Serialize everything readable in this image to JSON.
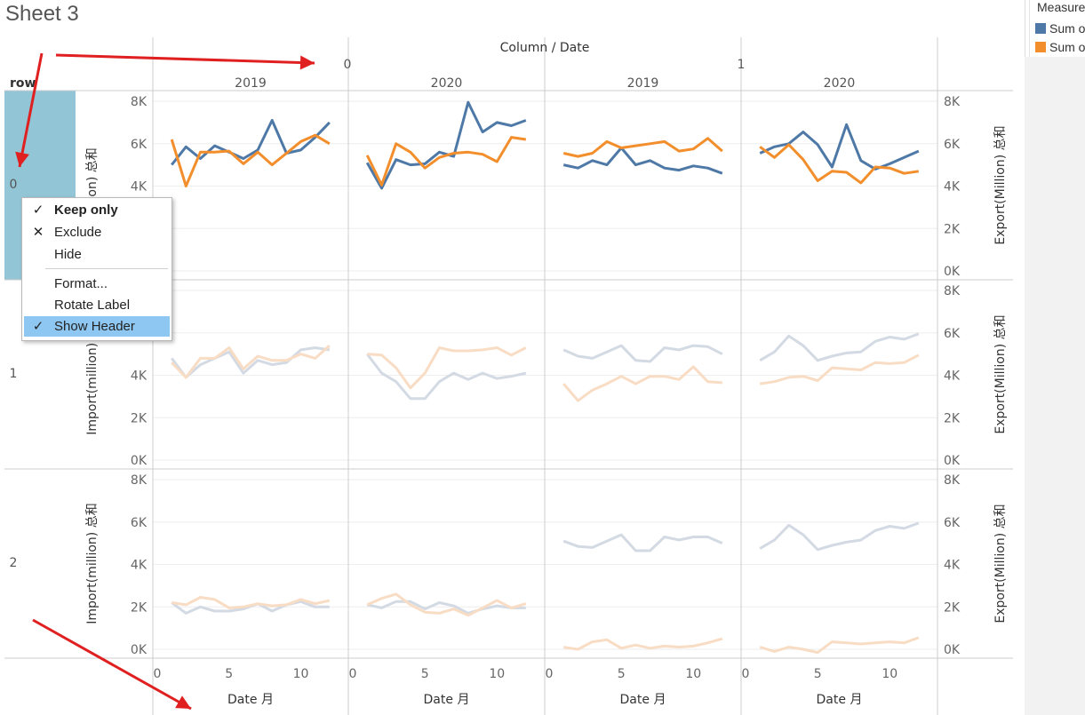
{
  "sheet_title": "Sheet 3",
  "colors": {
    "import": "#4e79a7",
    "export": "#f28e2b",
    "import_faded": "#d3dae3",
    "export_faded": "#f8dcc4",
    "selected_header": "#92c5d6",
    "menu_selected": "#8ec8f2",
    "annotation_arrow": "#e02020",
    "grid": "#eeeeee",
    "divider": "#cccccc"
  },
  "legend": {
    "title": "Measure",
    "items": [
      {
        "label": "Sum o",
        "color": "#4e79a7"
      },
      {
        "label": "Sum o",
        "color": "#f28e2b"
      }
    ]
  },
  "context_menu": {
    "items": [
      {
        "label": "Keep only",
        "icon": "check-icon",
        "glyph": "✓",
        "bold": true,
        "selected": false,
        "separator_before": false
      },
      {
        "label": "Exclude",
        "icon": "x-icon",
        "glyph": "✕",
        "bold": false,
        "selected": false,
        "separator_before": false
      },
      {
        "label": "Hide",
        "icon": "",
        "glyph": "",
        "bold": false,
        "selected": false,
        "separator_before": false
      },
      {
        "label": "Format...",
        "icon": "",
        "glyph": "",
        "bold": false,
        "selected": false,
        "separator_before": true
      },
      {
        "label": "Rotate Label",
        "icon": "",
        "glyph": "",
        "bold": false,
        "selected": false,
        "separator_before": false
      },
      {
        "label": "Show Header",
        "icon": "check-icon",
        "glyph": "✓",
        "bold": false,
        "selected": true,
        "separator_before": false
      }
    ]
  },
  "chart_data": {
    "type": "line",
    "title": "Column / Date",
    "row_header_label": "row",
    "rows": [
      "0",
      "1",
      "2"
    ],
    "columns": [
      {
        "column": "0",
        "year": "2019"
      },
      {
        "column": "0",
        "year": "2020"
      },
      {
        "column": "1",
        "year": "2019"
      },
      {
        "column": "1",
        "year": "2020"
      }
    ],
    "column_group_labels": [
      "0",
      "1"
    ],
    "x": [
      1,
      2,
      3,
      4,
      5,
      6,
      7,
      8,
      9,
      10,
      11,
      12
    ],
    "xlabel": "Date 月",
    "xticks": [
      0,
      5,
      10
    ],
    "xtick_labels": [
      "0",
      "5",
      "10"
    ],
    "xlim": [
      0,
      13
    ],
    "ylabel_left": "Import(million) 总和",
    "ylabel_left_row0": "million) 总和",
    "ylabel_right": "Export(Million) 总和",
    "ylim": [
      0,
      8000
    ],
    "yticks": [
      0,
      2000,
      4000,
      6000,
      8000
    ],
    "ytick_labels": [
      "0K",
      "2K",
      "4K",
      "6K",
      "8K"
    ],
    "highlighted_row": "0",
    "series_names": [
      "Sum of Import(million)",
      "Sum of Export(Million)"
    ],
    "cells": [
      [
        {
          "import": [
            5000,
            5850,
            5300,
            5900,
            5600,
            5300,
            5700,
            7100,
            5550,
            5700,
            6300,
            7000
          ],
          "export": [
            6200,
            4000,
            5600,
            5600,
            5650,
            5050,
            5600,
            5000,
            5550,
            6100,
            6400,
            6000
          ]
        },
        {
          "import": [
            5100,
            3900,
            5250,
            5000,
            5050,
            5600,
            5400,
            7950,
            6550,
            7000,
            6850,
            7100
          ],
          "export": [
            5450,
            4050,
            6000,
            5600,
            4850,
            5350,
            5550,
            5600,
            5500,
            5150,
            6300,
            6200
          ]
        },
        {
          "import": [
            5000,
            4850,
            5200,
            5000,
            5800,
            5000,
            5200,
            4850,
            4750,
            4950,
            4850,
            4600
          ],
          "export": [
            5550,
            5400,
            5550,
            6100,
            5800,
            5900,
            6000,
            6100,
            5650,
            5750,
            6250,
            5650
          ]
        },
        {
          "import": [
            5550,
            5850,
            6000,
            6550,
            5950,
            4900,
            6900,
            5200,
            4800,
            5050,
            5350,
            5650
          ],
          "export": [
            5850,
            5350,
            5950,
            5250,
            4250,
            4700,
            4650,
            4150,
            4900,
            4850,
            4600,
            4700
          ]
        }
      ],
      [
        {
          "import": [
            4800,
            3900,
            4500,
            4800,
            5100,
            4100,
            4700,
            4500,
            4600,
            5200,
            5300,
            5200
          ],
          "export": [
            4600,
            3900,
            4800,
            4800,
            5300,
            4300,
            4900,
            4700,
            4700,
            5000,
            4800,
            5400
          ]
        },
        {
          "import": [
            5000,
            4100,
            3700,
            2900,
            2900,
            3700,
            4100,
            3800,
            4100,
            3850,
            3950,
            4100
          ],
          "export": [
            5000,
            4950,
            4350,
            3400,
            4100,
            5300,
            5150,
            5150,
            5200,
            5300,
            4950,
            5300
          ]
        },
        {
          "import": [
            5200,
            4900,
            4800,
            5100,
            5400,
            4700,
            4650,
            5300,
            5200,
            5400,
            5350,
            5000
          ],
          "export": [
            3600,
            2800,
            3300,
            3600,
            3950,
            3600,
            3950,
            3950,
            3800,
            4400,
            3700,
            3650
          ]
        },
        {
          "import": [
            4700,
            5100,
            5850,
            5400,
            4700,
            4900,
            5050,
            5100,
            5600,
            5800,
            5700,
            5950
          ],
          "export": [
            3600,
            3700,
            3900,
            3950,
            3750,
            4350,
            4300,
            4250,
            4600,
            4550,
            4600,
            4950
          ]
        }
      ],
      [
        {
          "import": [
            2200,
            1700,
            2000,
            1800,
            1800,
            1900,
            2150,
            1800,
            2100,
            2250,
            2000,
            2000
          ],
          "export": [
            2200,
            2100,
            2450,
            2350,
            1950,
            2000,
            2150,
            2050,
            2100,
            2350,
            2150,
            2300
          ]
        },
        {
          "import": [
            2100,
            1950,
            2250,
            2250,
            1900,
            2200,
            2050,
            1700,
            1900,
            2050,
            1950,
            1950
          ],
          "export": [
            2100,
            2400,
            2600,
            2100,
            1750,
            1700,
            1900,
            1600,
            1950,
            2300,
            1950,
            2150
          ]
        },
        {
          "import": [
            5100,
            4850,
            4800,
            5100,
            5400,
            4650,
            4650,
            5300,
            5150,
            5300,
            5300,
            5000
          ],
          "export": [
            100,
            0,
            350,
            450,
            50,
            200,
            50,
            150,
            100,
            150,
            300,
            500
          ]
        },
        {
          "import": [
            4750,
            5150,
            5850,
            5400,
            4700,
            4900,
            5050,
            5150,
            5600,
            5800,
            5700,
            5950
          ],
          "export": [
            100,
            -100,
            100,
            0,
            -150,
            350,
            300,
            250,
            300,
            350,
            300,
            550
          ]
        }
      ]
    ]
  }
}
